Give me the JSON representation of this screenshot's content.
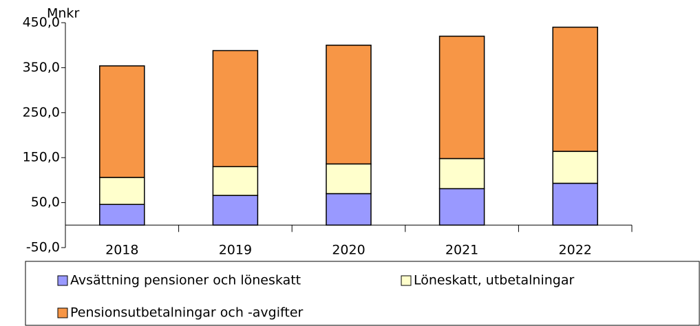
{
  "chart_data": {
    "type": "stacked_bar",
    "y_axis_label": "Mnkr",
    "categories": [
      "2018",
      "2019",
      "2020",
      "2021",
      "2022"
    ],
    "series": [
      {
        "name": "Avsättning pensioner och löneskatt",
        "color": "#9999ff",
        "values": [
          46,
          66,
          70,
          81,
          93
        ]
      },
      {
        "name": "Löneskatt, utbetalningar",
        "color": "#ffffcc",
        "values": [
          60,
          64,
          66,
          67,
          71
        ]
      },
      {
        "name": "Pensionsutbetalningar och -avgifter",
        "color": "#f79646",
        "values": [
          248,
          258,
          264,
          272,
          276
        ]
      }
    ],
    "ylim": [
      -50,
      450
    ],
    "yticks": [
      {
        "value": -50,
        "label": "-50,0"
      },
      {
        "value": 50,
        "label": "50,0"
      },
      {
        "value": 150,
        "label": "150,0"
      },
      {
        "value": 250,
        "label": "250,0"
      },
      {
        "value": 350,
        "label": "350,0"
      },
      {
        "value": 450,
        "label": "450,0"
      }
    ],
    "grid": false,
    "legend": "bottom"
  }
}
